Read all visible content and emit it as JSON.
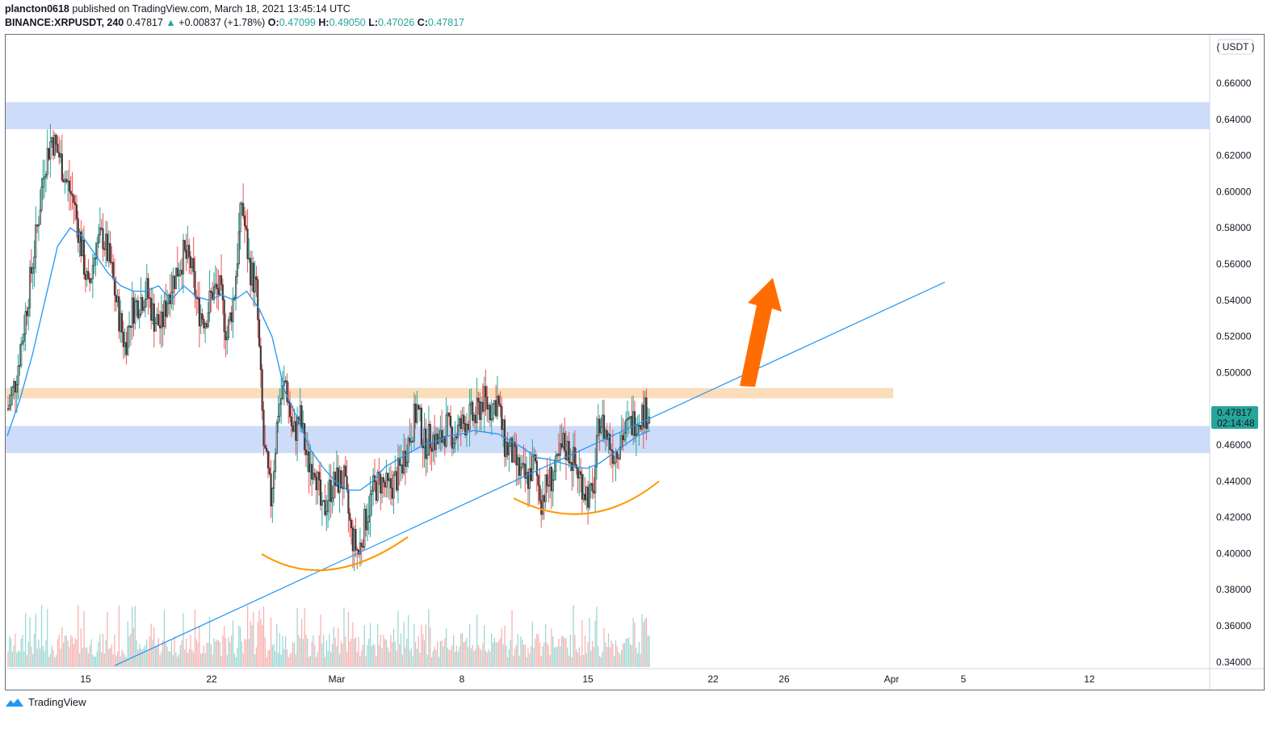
{
  "header": {
    "author": "plancton0618",
    "published_text": "published on TradingView.com, March 18, 2021 13:45:14 UTC",
    "symbol": "BINANCE:XRPUSDT, 240",
    "last": "0.47817",
    "arrow": "▲",
    "change": "+0.00837 (+1.78%)",
    "o_label": "O:",
    "o_value": "0.47099",
    "h_label": "H:",
    "h_value": "0.49050",
    "l_label": "L:",
    "l_value": "0.47026",
    "c_label": "C:",
    "c_value": "0.47817"
  },
  "footer": {
    "brand": "TradingView",
    "logo_icon": "tradingview-logo-icon"
  },
  "colors": {
    "up": "#26a69a",
    "down": "#ef5350",
    "candle": "#3d3d3d",
    "ma": "#2196f3",
    "zone_blue": "#c8d8f7",
    "zone_orange": "#fbd9b4",
    "arc": "#ff9800",
    "arrow": "#ff6d00"
  },
  "chart_data": {
    "type": "candlestick",
    "pair": "XRPUSDT",
    "timeframe": "240",
    "currency_label": "USDT",
    "y_ticks": [
      "0.66000",
      "0.64000",
      "0.62000",
      "0.60000",
      "0.58000",
      "0.56000",
      "0.54000",
      "0.52000",
      "0.50000",
      "0.48000",
      "0.46000",
      "0.44000",
      "0.42000",
      "0.40000",
      "0.38000",
      "0.36000",
      "0.34000"
    ],
    "ylim": [
      0.337,
      0.671
    ],
    "x_ticks": [
      "15",
      "22",
      "Mar",
      "8",
      "15",
      "22",
      "26",
      "Apr",
      "5",
      "12"
    ],
    "last_price": "0.47817",
    "countdown": "02:14:48",
    "zones": [
      {
        "kind": "resistance",
        "low": 0.6345,
        "high": 0.6495
      },
      {
        "kind": "resistance",
        "low": 0.4858,
        "high": 0.4915
      },
      {
        "kind": "support",
        "low": 0.4555,
        "high": 0.4705
      }
    ],
    "price_path": [
      0.48,
      0.495,
      0.52,
      0.55,
      0.58,
      0.615,
      0.63,
      0.62,
      0.605,
      0.595,
      0.57,
      0.545,
      0.57,
      0.575,
      0.56,
      0.535,
      0.515,
      0.535,
      0.54,
      0.545,
      0.53,
      0.525,
      0.545,
      0.555,
      0.565,
      0.56,
      0.535,
      0.53,
      0.545,
      0.545,
      0.52,
      0.545,
      0.595,
      0.56,
      0.545,
      0.46,
      0.43,
      0.48,
      0.495,
      0.465,
      0.475,
      0.45,
      0.45,
      0.42,
      0.435,
      0.44,
      0.44,
      0.41,
      0.4,
      0.42,
      0.435,
      0.44,
      0.435,
      0.44,
      0.45,
      0.465,
      0.48,
      0.46,
      0.465,
      0.46,
      0.47,
      0.465,
      0.47,
      0.475,
      0.475,
      0.485,
      0.48,
      0.485,
      0.46,
      0.455,
      0.445,
      0.44,
      0.45,
      0.43,
      0.44,
      0.445,
      0.46,
      0.455,
      0.445,
      0.435,
      0.43,
      0.475,
      0.465,
      0.455,
      0.465,
      0.47,
      0.475,
      0.478
    ],
    "ma_path": [
      0.465,
      0.485,
      0.51,
      0.54,
      0.57,
      0.58,
      0.575,
      0.565,
      0.555,
      0.548,
      0.545,
      0.545,
      0.548,
      0.54,
      0.548,
      0.542,
      0.54,
      0.543,
      0.54,
      0.545,
      0.535,
      0.52,
      0.49,
      0.475,
      0.458,
      0.448,
      0.44,
      0.435,
      0.435,
      0.44,
      0.448,
      0.452,
      0.456,
      0.46,
      0.462,
      0.465,
      0.466,
      0.468,
      0.467,
      0.466,
      0.462,
      0.458,
      0.453,
      0.452,
      0.45,
      0.448,
      0.447,
      0.45,
      0.455,
      0.46,
      0.465,
      0.468
    ],
    "trendline": [
      {
        "x": "Feb 17",
        "y": 0.338
      },
      {
        "x": "Mar 31",
        "y": 0.55
      }
    ]
  }
}
